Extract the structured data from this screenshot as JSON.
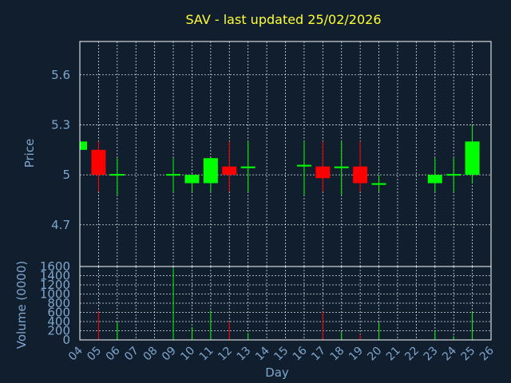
{
  "chart": {
    "title": "SAV - last updated 25/02/2026"
  },
  "chart_data": [
    {
      "type": "candlestick",
      "title": "SAV - last updated 25/02/2026",
      "ylabel": "Price",
      "ylim": [
        4.45,
        5.8
      ],
      "yticks": [
        "4.7",
        "5",
        "5.3",
        "5.6"
      ],
      "grid": true,
      "up_color": "#00ff00",
      "down_color": "#ff0000",
      "candles": [
        {
          "day": "04",
          "open": 5.15,
          "high": 5.2,
          "low": 5.15,
          "close": 5.2
        },
        {
          "day": "05",
          "open": 5.15,
          "high": 5.2,
          "low": 4.9,
          "close": 5.0
        },
        {
          "day": "06",
          "open": 5.0,
          "high": 5.1,
          "low": 4.88,
          "close": 5.0
        },
        {
          "day": "09",
          "open": 5.0,
          "high": 5.1,
          "low": 4.9,
          "close": 5.0
        },
        {
          "day": "10",
          "open": 4.95,
          "high": 5.0,
          "low": 4.9,
          "close": 5.0
        },
        {
          "day": "11",
          "open": 4.95,
          "high": 5.1,
          "low": 4.9,
          "close": 5.1
        },
        {
          "day": "12",
          "open": 5.05,
          "high": 5.2,
          "low": 4.9,
          "close": 5.0
        },
        {
          "day": "13",
          "open": 5.04,
          "high": 5.2,
          "low": 4.9,
          "close": 5.05
        },
        {
          "day": "16",
          "open": 5.05,
          "high": 5.2,
          "low": 4.88,
          "close": 5.06
        },
        {
          "day": "17",
          "open": 5.05,
          "high": 5.2,
          "low": 4.9,
          "close": 4.98
        },
        {
          "day": "18",
          "open": 5.04,
          "high": 5.2,
          "low": 4.88,
          "close": 5.05
        },
        {
          "day": "19",
          "open": 5.05,
          "high": 5.2,
          "low": 4.9,
          "close": 4.95
        },
        {
          "day": "20",
          "open": 4.94,
          "high": 5.0,
          "low": 4.9,
          "close": 4.95
        },
        {
          "day": "23",
          "open": 4.95,
          "high": 5.1,
          "low": 4.9,
          "close": 5.0
        },
        {
          "day": "24",
          "open": 5.0,
          "high": 5.1,
          "low": 4.9,
          "close": 5.0
        },
        {
          "day": "25",
          "open": 5.0,
          "high": 5.3,
          "low": 4.95,
          "close": 5.2
        }
      ]
    },
    {
      "type": "bar",
      "ylabel": "Volume (0000)",
      "xlabel": "Day",
      "ylim": [
        0,
        1600
      ],
      "yticks": [
        "0",
        "200",
        "400",
        "600",
        "800",
        "1000",
        "1200",
        "1400",
        "1600"
      ],
      "grid": true,
      "categories": [
        "04",
        "05",
        "06",
        "09",
        "10",
        "11",
        "12",
        "13",
        "16",
        "17",
        "18",
        "19",
        "20",
        "23",
        "24",
        "25"
      ],
      "values": [
        0,
        620,
        380,
        1560,
        280,
        640,
        400,
        150,
        0,
        610,
        170,
        120,
        380,
        200,
        80,
        620
      ],
      "colors": [
        "#00ff00",
        "#ff0000",
        "#00ff00",
        "#00ff00",
        "#00ff00",
        "#00ff00",
        "#ff0000",
        "#00ff00",
        "#00ff00",
        "#ff0000",
        "#00ff00",
        "#ff0000",
        "#00ff00",
        "#00ff00",
        "#00ff00",
        "#00ff00"
      ]
    }
  ],
  "x_axis": {
    "labels": [
      "04",
      "05",
      "06",
      "07",
      "08",
      "09",
      "10",
      "11",
      "12",
      "13",
      "14",
      "15",
      "16",
      "17",
      "18",
      "19",
      "20",
      "21",
      "22",
      "23",
      "24",
      "25",
      "26"
    ]
  }
}
